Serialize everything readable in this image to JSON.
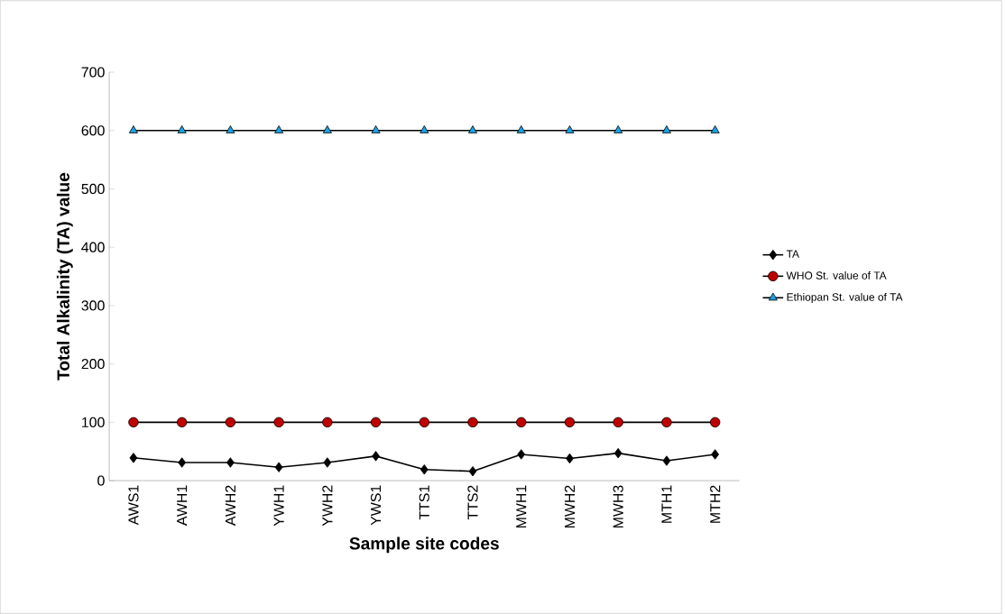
{
  "chart_data": {
    "type": "line",
    "xlabel": "Sample site codes",
    "ylabel": "Total Alkalinity (TA) value",
    "categories": [
      "AWS1",
      "AWH1",
      "AWH2",
      "YWH1",
      "YWH2",
      "YWS1",
      "TTS1",
      "TTS2",
      "MWH1",
      "MWH2",
      "MWH3",
      "MTH1",
      "MTH2"
    ],
    "series": [
      {
        "name": "TA",
        "color": "#000000",
        "marker": "diamond",
        "values": [
          39,
          31,
          31,
          23,
          31,
          42,
          19,
          16,
          45,
          38,
          47,
          34,
          45
        ]
      },
      {
        "name": "WHO St. value of TA",
        "color": "#c00000",
        "marker": "circle",
        "values": [
          100,
          100,
          100,
          100,
          100,
          100,
          100,
          100,
          100,
          100,
          100,
          100,
          100
        ]
      },
      {
        "name": "Ethiopan St. value of TA",
        "color": "#1ba1e2",
        "marker": "triangle",
        "values": [
          600,
          600,
          600,
          600,
          600,
          600,
          600,
          600,
          600,
          600,
          600,
          600,
          600
        ]
      }
    ],
    "ylim": [
      0,
      700
    ],
    "yticks": [
      0,
      100,
      200,
      300,
      400,
      500,
      600,
      700
    ],
    "grid": false,
    "legend": "right"
  }
}
